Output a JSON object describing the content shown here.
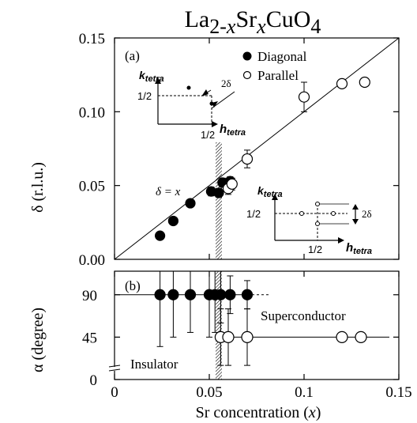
{
  "chart_data": {
    "type": "scatter",
    "title": {
      "main": "La",
      "sub1": "2-",
      "x1": "x",
      "mid": "Sr",
      "x2": "x",
      "end": "CuO",
      "sub2": "4"
    },
    "xlabel": "Sr concentration (x)",
    "xlabel_parts": {
      "pre": "Sr concentration (",
      "var": "x",
      "post": ")"
    },
    "xlim": [
      0,
      0.15
    ],
    "xticks": [
      {
        "v": 0,
        "label": "0"
      },
      {
        "v": 0.05,
        "label": "0.05"
      },
      {
        "v": 0.1,
        "label": "0.1"
      },
      {
        "v": 0.15,
        "label": "0.15"
      }
    ],
    "hatched_boundary_x": 0.055,
    "panel_a": {
      "label": "(a)",
      "ylabel": "δ (r.l.u.)",
      "ylim": [
        0,
        0.15
      ],
      "yticks": [
        {
          "v": 0,
          "label": "0.00"
        },
        {
          "v": 0.05,
          "label": "0.05"
        },
        {
          "v": 0.1,
          "label": "0.10"
        },
        {
          "v": 0.15,
          "label": "0.15"
        }
      ],
      "line_label": "δ = x",
      "legend": [
        {
          "name": "Diagonal",
          "marker": "filled-circle"
        },
        {
          "name": "Parallel",
          "marker": "open-circle"
        }
      ],
      "series": [
        {
          "name": "Diagonal",
          "marker": "filled",
          "points": [
            {
              "x": 0.024,
              "y": 0.016,
              "err": 0
            },
            {
              "x": 0.031,
              "y": 0.026,
              "err": 0
            },
            {
              "x": 0.04,
              "y": 0.038,
              "err": 0
            },
            {
              "x": 0.051,
              "y": 0.046,
              "err": 0.003
            },
            {
              "x": 0.055,
              "y": 0.045,
              "err": 0.003
            },
            {
              "x": 0.057,
              "y": 0.052,
              "err": 0.003
            },
            {
              "x": 0.061,
              "y": 0.053,
              "err": 0.003
            }
          ]
        },
        {
          "name": "Parallel",
          "marker": "open",
          "points": [
            {
              "x": 0.06,
              "y": 0.048,
              "err": 0.004
            },
            {
              "x": 0.062,
              "y": 0.051,
              "err": 0.004
            },
            {
              "x": 0.07,
              "y": 0.068,
              "err": 0.006
            },
            {
              "x": 0.1,
              "y": 0.11,
              "err": 0.01
            },
            {
              "x": 0.12,
              "y": 0.119,
              "err": 0
            },
            {
              "x": 0.132,
              "y": 0.12,
              "err": 0
            }
          ]
        }
      ],
      "inset_diagonal": {
        "k": "k",
        "k_sub": "tetra",
        "h": "h",
        "h_sub": "tetra",
        "half_x": "1/2",
        "half_y": "1/2",
        "delta": "2δ"
      },
      "inset_parallel": {
        "k": "k",
        "k_sub": "tetra",
        "h": "h",
        "h_sub": "tetra",
        "half_x": "1/2",
        "half_y": "1/2",
        "delta": "2δ"
      }
    },
    "panel_b": {
      "label": "(b)",
      "ylabel": "α (degree)",
      "ylim": [
        0,
        115
      ],
      "yticks": [
        {
          "v": 0,
          "label": "0"
        },
        {
          "v": 45,
          "label": "45"
        },
        {
          "v": 90,
          "label": "90"
        }
      ],
      "region_labels": [
        "Superconductor",
        "Insulator"
      ],
      "series": [
        {
          "name": "Diagonal",
          "marker": "filled",
          "points": [
            {
              "x": 0.024,
              "y": 90,
              "err": 55
            },
            {
              "x": 0.031,
              "y": 90,
              "err": 45
            },
            {
              "x": 0.04,
              "y": 90,
              "err": 40
            },
            {
              "x": 0.05,
              "y": 90,
              "err": 45
            },
            {
              "x": 0.053,
              "y": 90,
              "err": 40
            },
            {
              "x": 0.056,
              "y": 90,
              "err": 30
            },
            {
              "x": 0.061,
              "y": 90,
              "err": 20
            },
            {
              "x": 0.07,
              "y": 90,
              "err": 15
            }
          ]
        },
        {
          "name": "Parallel",
          "marker": "open",
          "points": [
            {
              "x": 0.056,
              "y": 45,
              "err": 30
            },
            {
              "x": 0.06,
              "y": 45,
              "err": 30
            },
            {
              "x": 0.07,
              "y": 45,
              "err": 30
            },
            {
              "x": 0.12,
              "y": 45,
              "err": 0
            },
            {
              "x": 0.13,
              "y": 45,
              "err": 0
            }
          ]
        }
      ]
    }
  }
}
